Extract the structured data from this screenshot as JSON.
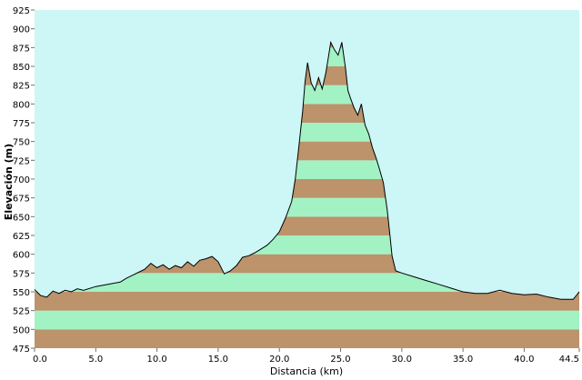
{
  "chart_data": {
    "type": "area",
    "title": "",
    "xlabel": "Distancia  (km)",
    "ylabel": "Elevación (m)",
    "xlim": [
      0,
      44.5
    ],
    "ylim": [
      475,
      925
    ],
    "xticks": [
      "0.0",
      "5.0",
      "10.0",
      "15.0",
      "20.0",
      "25.0",
      "30.0",
      "35.0",
      "40.0",
      "44.5"
    ],
    "xtick_values": [
      0,
      5,
      10,
      15,
      20,
      25,
      30,
      35,
      40,
      44.5
    ],
    "yticks": [
      "475",
      "500",
      "525",
      "550",
      "575",
      "600",
      "625",
      "650",
      "675",
      "700",
      "725",
      "750",
      "775",
      "800",
      "825",
      "850",
      "875",
      "900",
      "925"
    ],
    "ytick_values": [
      475,
      500,
      525,
      550,
      575,
      600,
      625,
      650,
      675,
      700,
      725,
      750,
      775,
      800,
      825,
      850,
      875,
      900,
      925
    ],
    "band_height": 25,
    "grid": false,
    "legend": "none",
    "colors": {
      "plot_background": "#cdf6f6",
      "band_brown": "#bc936a",
      "band_green": "#a2f2c4",
      "outline": "#000000",
      "ticks": "#707070"
    },
    "series": [
      {
        "x": [
          0,
          0.5,
          1,
          1.5,
          2,
          2.5,
          3,
          3.5,
          4,
          5,
          6,
          7,
          7.5,
          8,
          8.5,
          9,
          9.5,
          10,
          10.5,
          11,
          11.5,
          12,
          12.5,
          13,
          13.5,
          14,
          14.5,
          15,
          15.5,
          16,
          16.5,
          17,
          17.5,
          18,
          18.5,
          19,
          19.5,
          20,
          20.5,
          21,
          21.3,
          21.6,
          21.9,
          22.1,
          22.3,
          22.6,
          22.9,
          23.2,
          23.5,
          23.8,
          24,
          24.2,
          24.5,
          24.8,
          25.1,
          25.4,
          25.6,
          25.8,
          26.1,
          26.4,
          26.7,
          27,
          27.3,
          27.6,
          27.9,
          28.2,
          28.5,
          28.8,
          29,
          29.2,
          29.5,
          30,
          31,
          32,
          33,
          34,
          35,
          36,
          37,
          38,
          39,
          40,
          41,
          42,
          43,
          44,
          44.5
        ],
        "y": [
          553,
          545,
          543,
          551,
          548,
          552,
          550,
          554,
          552,
          557,
          560,
          563,
          568,
          572,
          576,
          580,
          588,
          582,
          586,
          580,
          585,
          582,
          590,
          584,
          592,
          594,
          597,
          590,
          574,
          578,
          585,
          596,
          598,
          602,
          607,
          612,
          620,
          630,
          648,
          670,
          700,
          745,
          790,
          830,
          855,
          828,
          818,
          835,
          820,
          842,
          862,
          882,
          872,
          865,
          882,
          848,
          818,
          808,
          795,
          785,
          800,
          772,
          760,
          742,
          728,
          712,
          695,
          660,
          630,
          598,
          578,
          575,
          570,
          565,
          560,
          555,
          550,
          548,
          548,
          552,
          548,
          546,
          547,
          543,
          540,
          540,
          550
        ]
      }
    ]
  }
}
